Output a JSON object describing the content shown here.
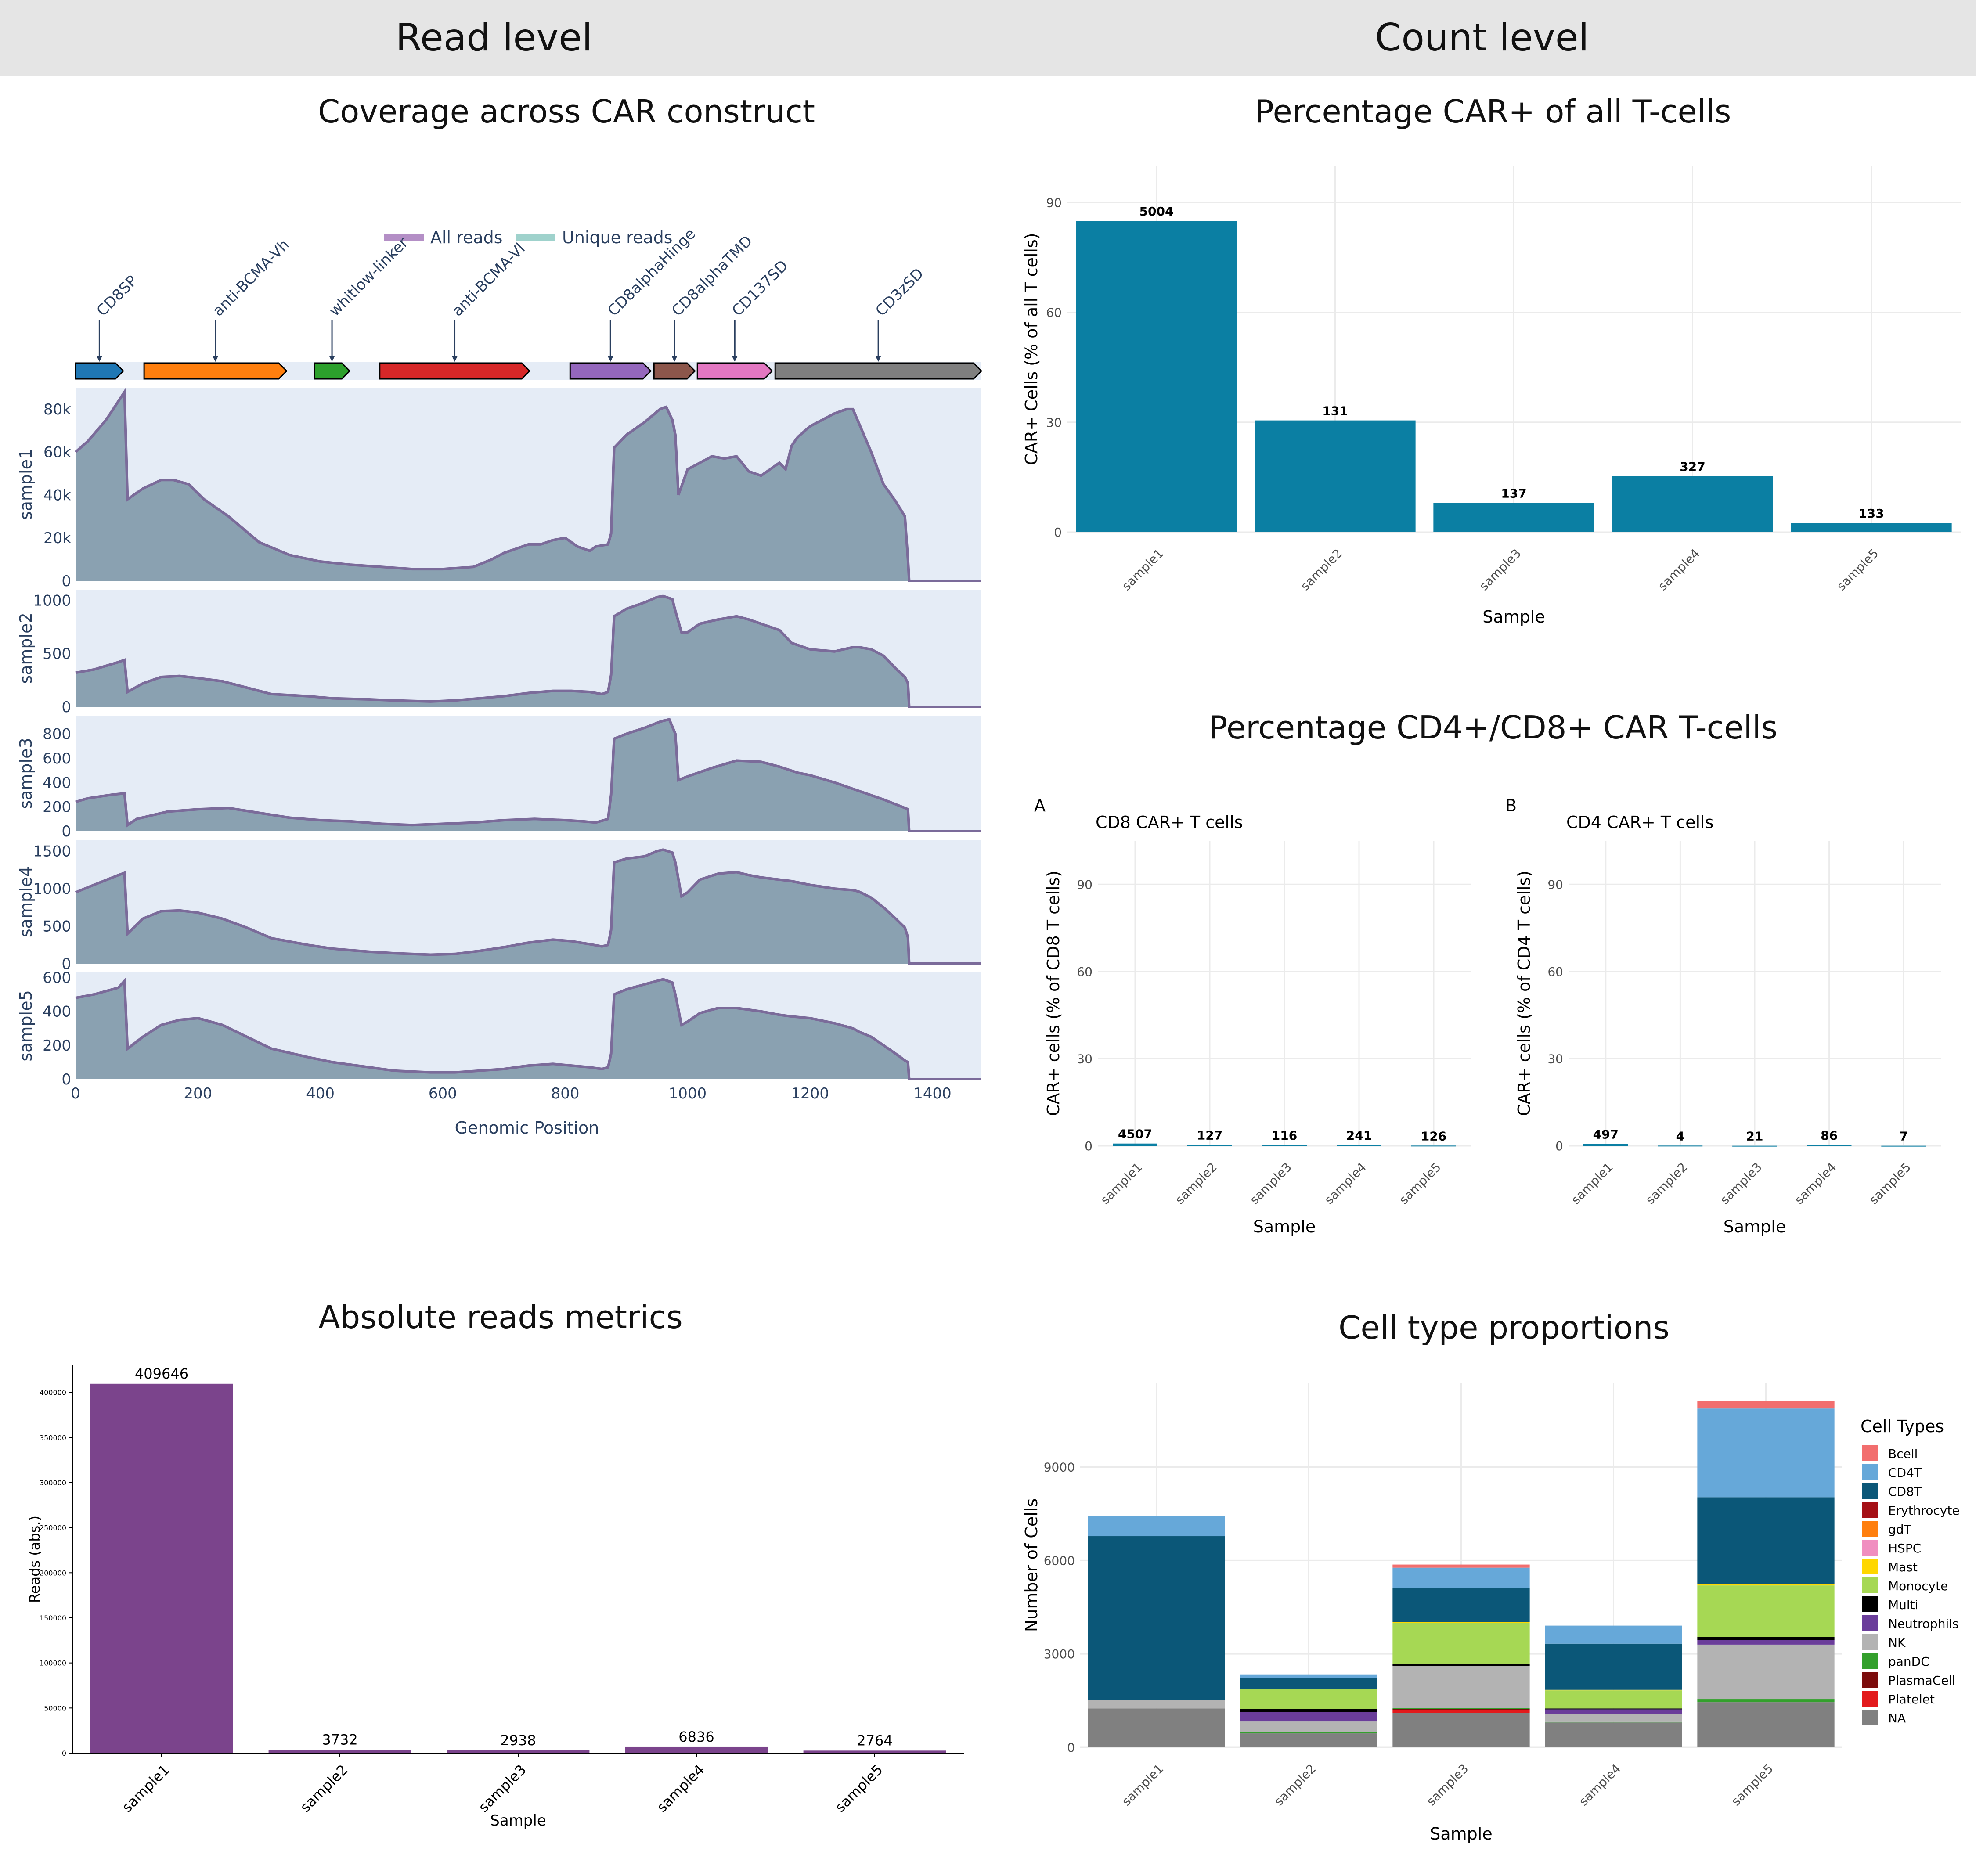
{
  "headers": {
    "left": "Read level",
    "right": "Count level"
  },
  "titles": {
    "coverage": "Coverage across CAR construct",
    "car_percent": "Percentage CAR+ of all T-cells",
    "cd4cd8": "Percentage CD4+/CD8+ CAR T-cells",
    "reads": "Absolute reads metrics",
    "celltype": "Cell type proportions"
  },
  "colors": {
    "coverage_fill": "#8aa1b1",
    "coverage_line": "#7b6b9a",
    "plot_bg": "#e5ecf6",
    "car_bar": "#0b7fa3",
    "reads_bar": "#7b448c",
    "legend_all": "#b48fc6",
    "legend_unique": "#9fd2cc"
  },
  "chart_data": [
    {
      "id": "coverage",
      "type": "area",
      "title": "Coverage across CAR construct",
      "xlabel": "Genomic Position",
      "xlim": [
        0,
        1480
      ],
      "xticks": [
        0,
        200,
        400,
        600,
        800,
        1000,
        1200,
        1400
      ],
      "legend": [
        "All reads",
        "Unique reads"
      ],
      "features": [
        {
          "name": "CD8SP",
          "start": 0,
          "end": 78,
          "color": "#1f77b4"
        },
        {
          "name": "anti-BCMA-Vh",
          "start": 112,
          "end": 345,
          "color": "#ff7f0e"
        },
        {
          "name": "whitlow-linker",
          "start": 390,
          "end": 448,
          "color": "#2ca02c"
        },
        {
          "name": "anti-BCMA-Vl",
          "start": 497,
          "end": 742,
          "color": "#d62728"
        },
        {
          "name": "CD8alphaHinge",
          "start": 808,
          "end": 940,
          "color": "#9467bd"
        },
        {
          "name": "CD8alphaTMD",
          "start": 945,
          "end": 1012,
          "color": "#8c564b"
        },
        {
          "name": "CD137SD",
          "start": 1016,
          "end": 1138,
          "color": "#e377c2"
        },
        {
          "name": "CD3zSD",
          "start": 1143,
          "end": 1480,
          "color": "#7f7f7f"
        }
      ],
      "series": [
        {
          "name": "sample1",
          "ylim": [
            0,
            90000
          ],
          "yticks": [
            0,
            20000,
            40000,
            60000,
            80000
          ],
          "yticklabels": [
            "0",
            "20k",
            "40k",
            "60k",
            "80k"
          ],
          "x": [
            0,
            20,
            50,
            80,
            85,
            110,
            140,
            160,
            185,
            210,
            250,
            300,
            350,
            400,
            450,
            500,
            550,
            600,
            650,
            680,
            700,
            720,
            740,
            760,
            780,
            800,
            820,
            840,
            850,
            870,
            875,
            880,
            900,
            930,
            955,
            965,
            975,
            980,
            985,
            1000,
            1020,
            1040,
            1060,
            1080,
            1100,
            1120,
            1150,
            1160,
            1170,
            1180,
            1200,
            1240,
            1260,
            1270,
            1285,
            1300,
            1320,
            1340,
            1355,
            1360,
            1362,
            1480
          ],
          "values": [
            60000,
            65000,
            75000,
            88000,
            38000,
            43000,
            47000,
            47000,
            45000,
            38000,
            30000,
            18000,
            12000,
            9000,
            7500,
            6500,
            5500,
            5500,
            6500,
            10000,
            13000,
            15000,
            17000,
            17000,
            19000,
            20000,
            16000,
            14000,
            16000,
            17000,
            22000,
            62000,
            68000,
            74000,
            80000,
            81000,
            75000,
            68000,
            40000,
            52000,
            55000,
            58000,
            57000,
            58000,
            51000,
            49000,
            55000,
            52000,
            63000,
            67000,
            72000,
            78000,
            80000,
            80000,
            70000,
            60000,
            45000,
            37000,
            30000,
            10000,
            0,
            0
          ]
        },
        {
          "name": "sample2",
          "ylim": [
            0,
            1100
          ],
          "yticks": [
            0,
            500,
            1000
          ],
          "yticklabels": [
            "0",
            "500",
            "1000"
          ],
          "x": [
            0,
            30,
            70,
            80,
            85,
            110,
            140,
            170,
            200,
            240,
            280,
            320,
            380,
            420,
            480,
            520,
            580,
            620,
            660,
            700,
            740,
            780,
            810,
            840,
            860,
            870,
            875,
            880,
            900,
            930,
            950,
            960,
            975,
            980,
            990,
            1000,
            1020,
            1050,
            1080,
            1100,
            1120,
            1150,
            1170,
            1200,
            1240,
            1270,
            1280,
            1300,
            1320,
            1340,
            1355,
            1360,
            1362,
            1480
          ],
          "values": [
            320,
            350,
            420,
            440,
            140,
            220,
            280,
            290,
            270,
            240,
            180,
            120,
            100,
            80,
            70,
            60,
            50,
            60,
            80,
            100,
            130,
            150,
            150,
            140,
            120,
            140,
            300,
            850,
            920,
            980,
            1030,
            1040,
            1010,
            900,
            700,
            700,
            780,
            820,
            850,
            820,
            780,
            720,
            600,
            540,
            520,
            560,
            560,
            540,
            480,
            360,
            280,
            220,
            0,
            0
          ]
        },
        {
          "name": "sample3",
          "ylim": [
            0,
            950
          ],
          "yticks": [
            0,
            200,
            400,
            600,
            800
          ],
          "yticklabels": [
            "0",
            "200",
            "400",
            "600",
            "800"
          ],
          "x": [
            0,
            20,
            60,
            80,
            85,
            100,
            150,
            200,
            250,
            300,
            350,
            400,
            450,
            500,
            550,
            600,
            650,
            700,
            750,
            800,
            830,
            850,
            870,
            875,
            880,
            900,
            930,
            955,
            970,
            980,
            985,
            1000,
            1040,
            1080,
            1120,
            1150,
            1180,
            1200,
            1240,
            1280,
            1320,
            1350,
            1360,
            1362,
            1480
          ],
          "values": [
            240,
            270,
            300,
            310,
            50,
            100,
            160,
            180,
            190,
            150,
            110,
            90,
            80,
            60,
            50,
            60,
            70,
            90,
            100,
            90,
            80,
            70,
            100,
            300,
            760,
            800,
            850,
            900,
            920,
            800,
            420,
            450,
            520,
            580,
            570,
            530,
            480,
            460,
            400,
            330,
            260,
            200,
            180,
            0,
            0
          ]
        },
        {
          "name": "sample4",
          "ylim": [
            0,
            1650
          ],
          "yticks": [
            0,
            500,
            1000,
            1500
          ],
          "yticklabels": [
            "0",
            "500",
            "1000",
            "1500"
          ],
          "x": [
            0,
            30,
            70,
            80,
            85,
            110,
            140,
            170,
            200,
            240,
            280,
            320,
            380,
            420,
            480,
            520,
            580,
            620,
            660,
            700,
            740,
            780,
            810,
            840,
            860,
            870,
            875,
            880,
            900,
            930,
            950,
            960,
            975,
            980,
            990,
            1000,
            1020,
            1050,
            1080,
            1100,
            1120,
            1150,
            1170,
            1200,
            1240,
            1270,
            1280,
            1300,
            1320,
            1340,
            1355,
            1360,
            1362,
            1480
          ],
          "values": [
            950,
            1050,
            1180,
            1210,
            400,
            600,
            700,
            710,
            680,
            600,
            480,
            340,
            250,
            200,
            160,
            140,
            120,
            130,
            170,
            220,
            280,
            320,
            300,
            260,
            230,
            250,
            450,
            1350,
            1400,
            1430,
            1500,
            1520,
            1480,
            1350,
            900,
            950,
            1120,
            1200,
            1220,
            1180,
            1150,
            1120,
            1100,
            1050,
            1000,
            980,
            960,
            880,
            750,
            600,
            480,
            350,
            0,
            0
          ]
        },
        {
          "name": "sample5",
          "ylim": [
            0,
            630
          ],
          "yticks": [
            0,
            200,
            400,
            600
          ],
          "yticklabels": [
            "0",
            "200",
            "400",
            "600"
          ],
          "x": [
            0,
            30,
            70,
            80,
            85,
            110,
            140,
            170,
            200,
            240,
            280,
            320,
            380,
            420,
            480,
            520,
            580,
            620,
            660,
            700,
            740,
            780,
            810,
            840,
            860,
            870,
            875,
            880,
            900,
            930,
            950,
            960,
            975,
            980,
            990,
            1000,
            1020,
            1050,
            1080,
            1100,
            1120,
            1150,
            1170,
            1200,
            1240,
            1270,
            1280,
            1300,
            1320,
            1340,
            1355,
            1360,
            1362,
            1480
          ],
          "values": [
            480,
            500,
            540,
            580,
            180,
            250,
            320,
            350,
            360,
            320,
            250,
            180,
            130,
            100,
            70,
            50,
            40,
            40,
            50,
            60,
            80,
            90,
            80,
            70,
            60,
            70,
            150,
            500,
            530,
            560,
            580,
            590,
            570,
            500,
            320,
            340,
            390,
            420,
            420,
            410,
            400,
            380,
            370,
            360,
            330,
            300,
            280,
            250,
            200,
            150,
            110,
            100,
            0,
            0
          ]
        }
      ]
    },
    {
      "id": "car_percent",
      "type": "bar",
      "title": "Percentage CAR+ of all T-cells",
      "xlabel": "Sample",
      "ylabel": "CAR+ Cells (% of all T cells)",
      "ylim": [
        0,
        100
      ],
      "yticks": [
        0,
        30,
        60,
        90
      ],
      "categories": [
        "sample1",
        "sample2",
        "sample3",
        "sample4",
        "sample5"
      ],
      "values": [
        85,
        30.5,
        8,
        15.3,
        2.5
      ],
      "labels": [
        "5004",
        "131",
        "137",
        "327",
        "133"
      ]
    },
    {
      "id": "cd8",
      "type": "bar",
      "panel": "A",
      "title": "CD8 CAR+ T cells",
      "xlabel": "Sample",
      "ylabel": "CAR+ cells (% of CD8 T cells)",
      "ylim": [
        0,
        105
      ],
      "yticks": [
        0,
        30,
        60,
        90
      ],
      "categories": [
        "sample1",
        "sample2",
        "sample3",
        "sample4",
        "sample5"
      ],
      "values": [
        0.8,
        0.4,
        0.3,
        0.3,
        0.1
      ],
      "labels": [
        "4507",
        "127",
        "116",
        "241",
        "126"
      ]
    },
    {
      "id": "cd4",
      "type": "bar",
      "panel": "B",
      "title": "CD4 CAR+ T cells",
      "xlabel": "Sample",
      "ylabel": "CAR+ cells (% of CD4 T cells)",
      "ylim": [
        0,
        105
      ],
      "yticks": [
        0,
        30,
        60,
        90
      ],
      "categories": [
        "sample1",
        "sample2",
        "sample3",
        "sample4",
        "sample5"
      ],
      "values": [
        0.7,
        0.1,
        0.05,
        0.3,
        0.05
      ],
      "labels": [
        "497",
        "4",
        "21",
        "86",
        "7"
      ]
    },
    {
      "id": "reads",
      "type": "bar",
      "title": "Absolute reads metrics",
      "xlabel": "Sample",
      "ylabel": "Reads (abs.)",
      "ylim": [
        0,
        430000
      ],
      "yticks": [
        0,
        50000,
        100000,
        150000,
        200000,
        250000,
        300000,
        350000,
        400000
      ],
      "categories": [
        "sample1",
        "sample2",
        "sample3",
        "sample4",
        "sample5"
      ],
      "values": [
        409646,
        3732,
        2938,
        6836,
        2764
      ],
      "labels": [
        "409646",
        "3732",
        "2938",
        "6836",
        "2764"
      ]
    },
    {
      "id": "celltype",
      "type": "bar",
      "stacked": true,
      "title": "Cell type proportions",
      "xlabel": "Sample",
      "ylabel": "Number of Cells",
      "ylim": [
        0,
        11700
      ],
      "yticks": [
        0,
        3000,
        6000,
        9000
      ],
      "categories": [
        "sample1",
        "sample2",
        "sample3",
        "sample4",
        "sample5"
      ],
      "legend_title": "Cell Types",
      "legend_position": "right",
      "series": [
        {
          "name": "NA",
          "color": "#808080",
          "values": [
            1250,
            450,
            1100,
            800,
            1450
          ]
        },
        {
          "name": "Platelet",
          "color": "#e31a1c",
          "values": [
            0,
            0,
            100,
            0,
            0
          ]
        },
        {
          "name": "PlasmaCell",
          "color": "#7b0c0c",
          "values": [
            0,
            0,
            30,
            0,
            0
          ]
        },
        {
          "name": "panDC",
          "color": "#33a02c",
          "values": [
            0,
            30,
            30,
            20,
            100
          ]
        },
        {
          "name": "NK",
          "color": "#b3b3b3",
          "values": [
            280,
            350,
            1350,
            250,
            1750
          ]
        },
        {
          "name": "Neutrophils",
          "color": "#6a3d9a",
          "values": [
            0,
            300,
            0,
            150,
            150
          ]
        },
        {
          "name": "Multi",
          "color": "#000000",
          "values": [
            0,
            100,
            80,
            30,
            100
          ]
        },
        {
          "name": "Monocyte",
          "color": "#a6d854",
          "values": [
            0,
            650,
            1300,
            580,
            1650
          ]
        },
        {
          "name": "Mast",
          "color": "#ffd700",
          "values": [
            0,
            0,
            30,
            20,
            30
          ]
        },
        {
          "name": "HSPC",
          "color": "#f08ec0",
          "values": [
            0,
            0,
            0,
            0,
            0
          ]
        },
        {
          "name": "gdT",
          "color": "#ff7f0e",
          "values": [
            0,
            0,
            0,
            0,
            0
          ]
        },
        {
          "name": "Erythrocyte",
          "color": "#a50f15",
          "values": [
            0,
            0,
            0,
            0,
            0
          ]
        },
        {
          "name": "CD8T",
          "color": "#0b5778",
          "values": [
            5250,
            350,
            1100,
            1480,
            2800
          ]
        },
        {
          "name": "CD4T",
          "color": "#66a8d9",
          "values": [
            650,
            100,
            650,
            580,
            2850
          ]
        },
        {
          "name": "Bcell",
          "color": "#f26e6e",
          "values": [
            0,
            0,
            100,
            0,
            250
          ]
        }
      ],
      "legend_order": [
        "Bcell",
        "CD4T",
        "CD8T",
        "Erythrocyte",
        "gdT",
        "HSPC",
        "Mast",
        "Monocyte",
        "Multi",
        "Neutrophils",
        "NK",
        "panDC",
        "PlasmaCell",
        "Platelet",
        "NA"
      ]
    }
  ]
}
